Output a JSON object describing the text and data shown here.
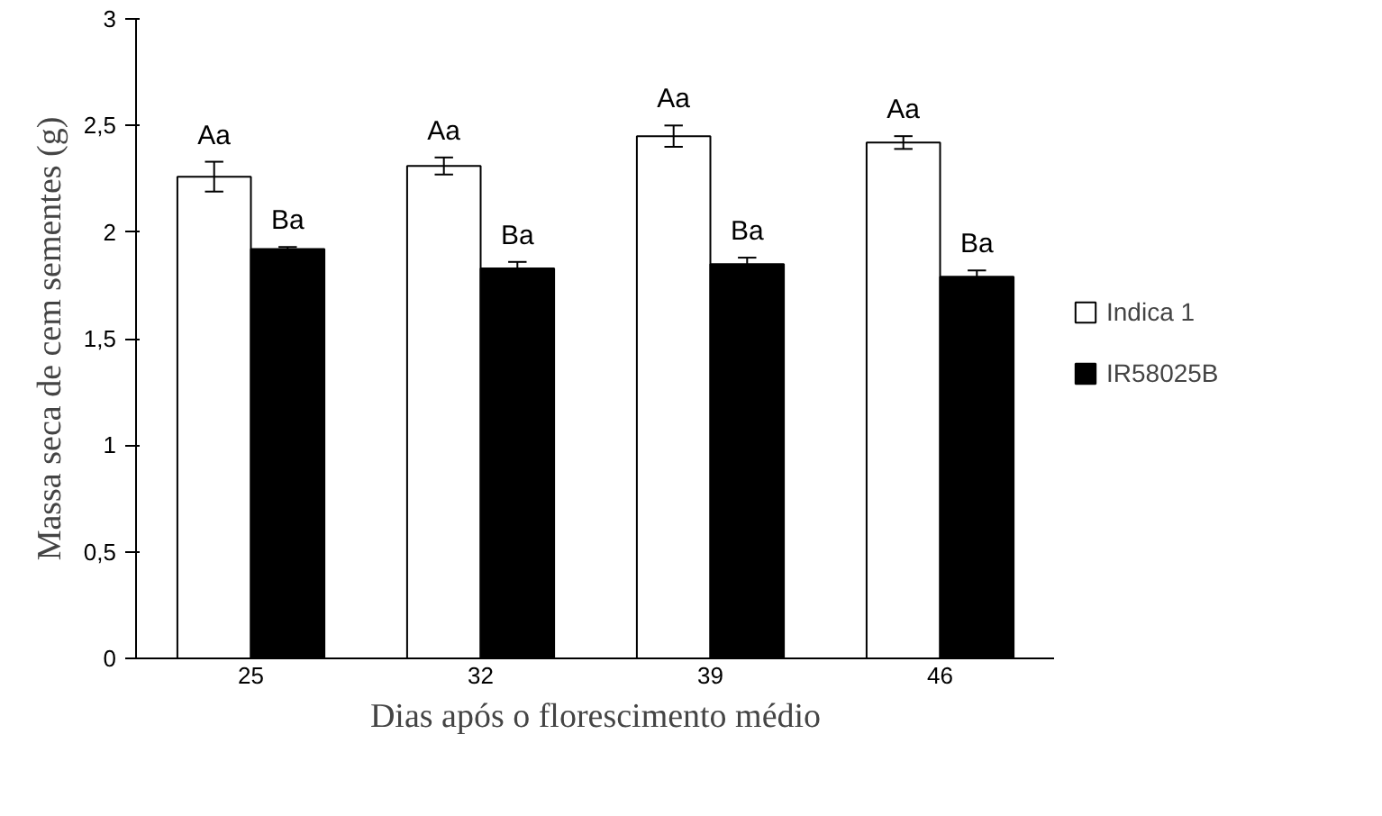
{
  "chart_data": {
    "type": "bar",
    "xlabel": "Dias após o florescimento médio",
    "ylabel": "Massa seca de cem sementes (g)",
    "categories": [
      "25",
      "32",
      "39",
      "46"
    ],
    "series": [
      {
        "name": "Indica 1",
        "color": "#ffffff",
        "values": [
          2.26,
          2.31,
          2.45,
          2.42
        ],
        "errors": [
          0.07,
          0.04,
          0.05,
          0.03
        ],
        "value_labels": [
          "Aa",
          "Aa",
          "Aa",
          "Aa"
        ]
      },
      {
        "name": "IR58025B",
        "color": "#000000",
        "values": [
          1.92,
          1.83,
          1.85,
          1.79
        ],
        "errors": [
          0.01,
          0.03,
          0.03,
          0.03
        ],
        "value_labels": [
          "Ba",
          "Ba",
          "Ba",
          "Ba"
        ]
      }
    ],
    "ylim": [
      0,
      3
    ],
    "yticks": [
      0,
      {
        "value": 0.5,
        "label": "0,5"
      },
      1,
      {
        "value": 1.5,
        "label": "1,5"
      },
      2,
      {
        "value": 2.5,
        "label": "2,5"
      },
      3
    ],
    "grid": false,
    "legend": "right"
  }
}
